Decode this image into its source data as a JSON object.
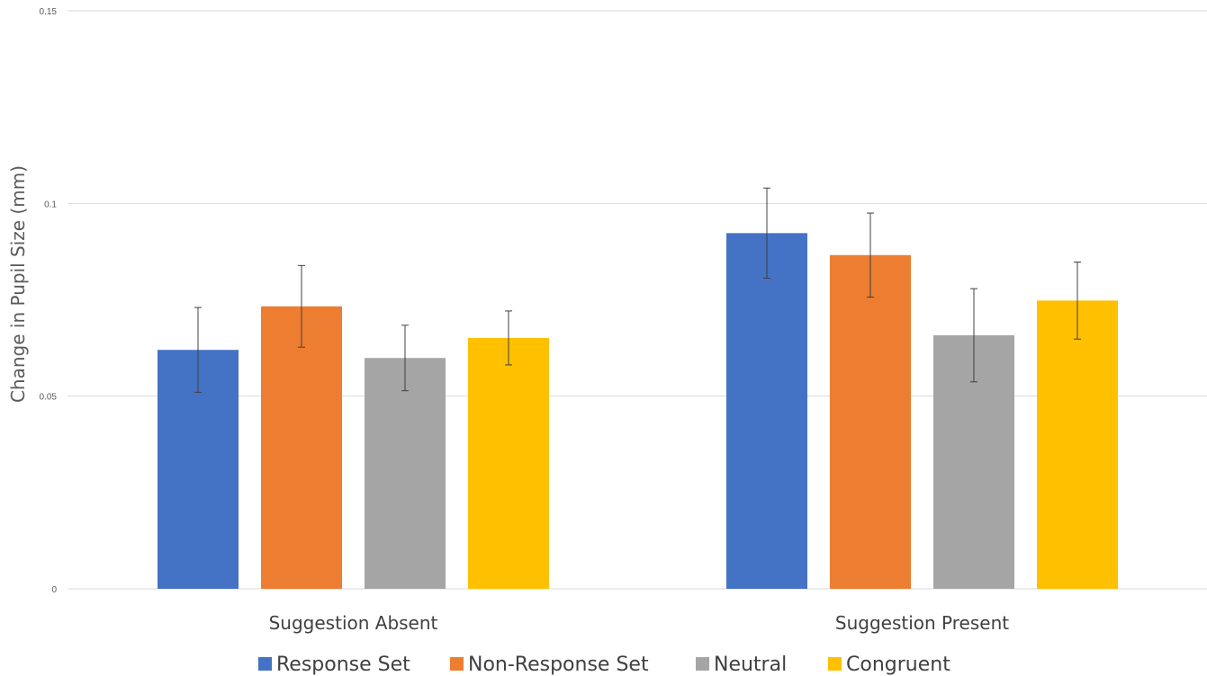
{
  "chart_data": {
    "type": "bar",
    "title": "",
    "xlabel": "",
    "ylabel": "Change in Pupil Size (mm)",
    "ylim": [
      0,
      0.15
    ],
    "yticks": [
      0,
      0.05,
      0.1,
      0.15
    ],
    "ytick_labels": [
      "0",
      "0.05",
      "0.1",
      "0.15"
    ],
    "grid": true,
    "legend_position": "bottom",
    "categories": [
      "Suggestion Absent",
      "Suggestion Present"
    ],
    "series": [
      {
        "name": "Response Set",
        "color": "#4472C4",
        "values": [
          0.062,
          0.0923
        ],
        "error": [
          0.011,
          0.0117
        ]
      },
      {
        "name": "Non-Response Set",
        "color": "#ED7D31",
        "values": [
          0.0733,
          0.0866
        ],
        "error": [
          0.0106,
          0.0109
        ]
      },
      {
        "name": "Neutral",
        "color": "#A5A5A5",
        "values": [
          0.0599,
          0.0658
        ],
        "error": [
          0.0085,
          0.0121
        ]
      },
      {
        "name": "Congruent",
        "color": "#FFC000",
        "values": [
          0.0651,
          0.0748
        ],
        "error": [
          0.007,
          0.01
        ]
      }
    ]
  }
}
